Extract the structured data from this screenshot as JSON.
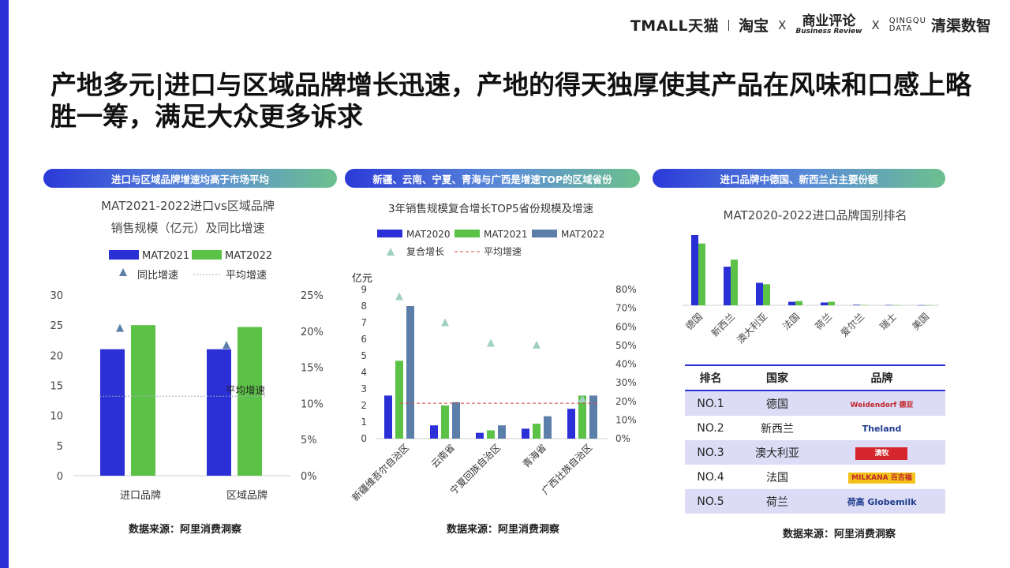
{
  "header": {
    "logo_tmall": "TMALL天猫",
    "logo_taobao": "淘宝",
    "sep1": "X",
    "logo_br_cn": "商业评论",
    "logo_br_en": "Business Review",
    "sep2": "X",
    "logo_cg_en1": "QINGQU",
    "logo_cg_en2": "DATA",
    "logo_cg_cn": "清渠数智"
  },
  "title": "产地多元|进口与区域品牌增长迅速，产地的得天独厚使其产品在风味和口感上略胜一筹，满足大众更多诉求",
  "pills": [
    {
      "text": "进口与区域品牌增速均高于市场平均"
    },
    {
      "text": "新疆、云南、宁夏、青海与广西是增速TOP的区域省份"
    },
    {
      "text": "进口品牌中德国、新西兰占主要份额"
    }
  ],
  "source": "数据来源：阿里消费洞察",
  "colors": {
    "blue": "#2b2fd6",
    "green": "#5cc247",
    "steel": "#5b7fa8",
    "tri": "#5b7fa8",
    "triLight": "#9fd0c2",
    "avg_red": "#d44444"
  },
  "chart_data": [
    {
      "type": "bar",
      "title": "MAT2021-2022进口vs区域品牌销售规模（亿元）及同比增速",
      "categories": [
        "进口品牌",
        "区域品牌"
      ],
      "series": [
        {
          "name": "MAT2021",
          "values": [
            21,
            21
          ]
        },
        {
          "name": "MAT2022",
          "values": [
            25,
            24.7
          ]
        }
      ],
      "secondary_series": {
        "name": "同比增速",
        "values": [
          0.2035,
          0.18
        ]
      },
      "average_line": {
        "name": "平均增速",
        "value": 0.11,
        "label": "平均增速"
      },
      "ylim": [
        0,
        30
      ],
      "yticks": [
        0,
        5,
        10,
        15,
        20,
        25,
        30
      ],
      "y2lim": [
        0,
        0.25
      ],
      "y2ticks": [
        "0%",
        "5%",
        "10%",
        "15%",
        "20%",
        "25%"
      ],
      "grid": false,
      "legend": "top"
    },
    {
      "type": "bar",
      "title": "3年销售规模复合增长TOP5省份规模及增速",
      "ylabel": "亿元",
      "categories": [
        "新疆维吾尔自治区",
        "云南省",
        "宁夏回族自治区",
        "青海省",
        "广西壮族自治区"
      ],
      "series": [
        {
          "name": "MAT2020",
          "values": [
            2.6,
            0.8,
            0.35,
            0.6,
            1.8
          ]
        },
        {
          "name": "MAT2021",
          "values": [
            4.7,
            2.0,
            0.5,
            0.9,
            2.6
          ]
        },
        {
          "name": "MAT2022",
          "values": [
            8.0,
            2.2,
            0.8,
            1.35,
            2.6
          ]
        }
      ],
      "secondary_series": {
        "name": "复合增长",
        "values": [
          0.76,
          0.62,
          0.51,
          0.5,
          0.21
        ]
      },
      "average_line": {
        "name": "平均增速",
        "value": 0.19
      },
      "ylim": [
        0,
        9
      ],
      "yticks": [
        0,
        1,
        2,
        3,
        4,
        5,
        6,
        7,
        8,
        9
      ],
      "y2lim": [
        0,
        0.8
      ],
      "y2ticks": [
        "0%",
        "10%",
        "20%",
        "30%",
        "40%",
        "50%",
        "60%",
        "70%",
        "80%"
      ],
      "grid": false,
      "legend": "top"
    },
    {
      "type": "bar",
      "title": "MAT2020-2022进口品牌国别排名",
      "categories": [
        "德国",
        "新西兰",
        "澳大利亚",
        "法国",
        "荷兰",
        "爱尔兰",
        "瑞士",
        "美国"
      ],
      "series": [
        {
          "values": [
            1.0,
            0.55,
            0.32,
            0.05,
            0.04,
            0.008,
            0.004,
            0.002
          ]
        },
        {
          "values": [
            0.88,
            0.65,
            0.3,
            0.06,
            0.05,
            0.006,
            0.003,
            0.002
          ]
        }
      ],
      "ylim": [
        0,
        1.0
      ],
      "axis_values_shown": false,
      "legend": "none"
    },
    {
      "type": "table",
      "columns": [
        "排名",
        "国家",
        "品牌"
      ],
      "rows": [
        {
          "rank": "NO.1",
          "country": "德国",
          "brand": "Weidendorf 德亚"
        },
        {
          "rank": "NO.2",
          "country": "新西兰",
          "brand": "Theland"
        },
        {
          "rank": "NO.3",
          "country": "澳大利亚",
          "brand": "澳牧"
        },
        {
          "rank": "NO.4",
          "country": "法国",
          "brand": "MILKANA 百吉福"
        },
        {
          "rank": "NO.5",
          "country": "荷兰",
          "brand": "荷高 Globemilk"
        }
      ]
    }
  ]
}
